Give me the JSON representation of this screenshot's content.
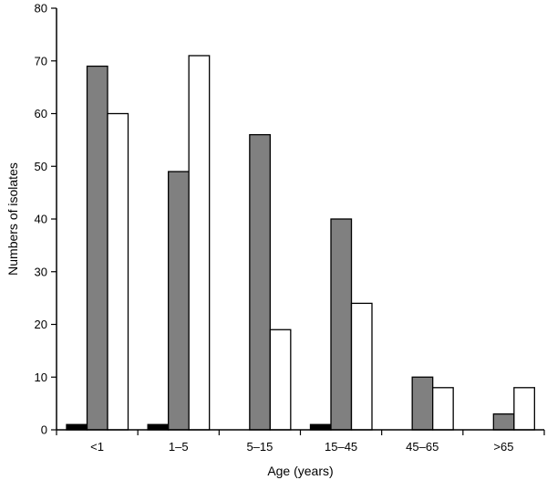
{
  "chart_data": {
    "type": "bar",
    "title": "",
    "xlabel": "Age (years)",
    "ylabel": "Numbers of isolates",
    "categories": [
      "<1",
      "1–5",
      "5–15",
      "15–45",
      "45–65",
      ">65"
    ],
    "series": [
      {
        "values": [
          1,
          1,
          0,
          1,
          0,
          0
        ],
        "color": "#000000"
      },
      {
        "values": [
          69,
          49,
          56,
          40,
          10,
          3
        ],
        "color": "#808080"
      },
      {
        "values": [
          60,
          71,
          19,
          24,
          8,
          8
        ],
        "color": "#ffffff"
      }
    ],
    "ylim": [
      0,
      80
    ],
    "yticks": [
      0,
      10,
      20,
      30,
      40,
      50,
      60,
      70,
      80
    ],
    "grid": false,
    "legend": "none"
  }
}
